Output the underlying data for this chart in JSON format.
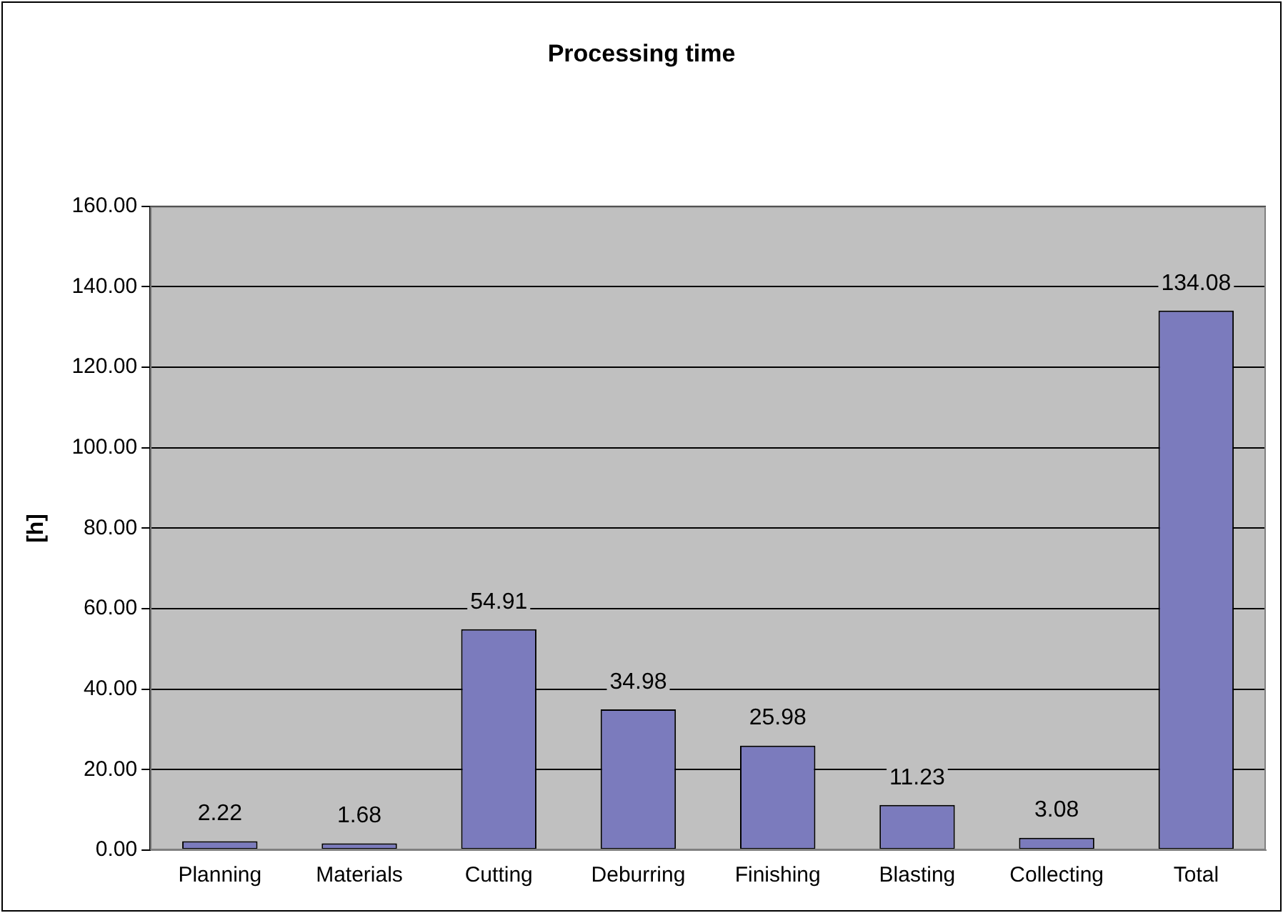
{
  "chart_data": {
    "type": "bar",
    "title": "Processing time",
    "ylabel": "[h]",
    "categories": [
      "Planning",
      "Materials",
      "Cutting",
      "Deburring",
      "Finishing",
      "Blasting",
      "Collecting",
      "Total"
    ],
    "values": [
      2.22,
      1.68,
      54.91,
      34.98,
      25.98,
      11.23,
      3.08,
      134.08
    ],
    "color": "#7b7bbd",
    "ylim": [
      0,
      160
    ],
    "yticks": [
      {
        "value": 0,
        "label": "0.00"
      },
      {
        "value": 20,
        "label": "20.00"
      },
      {
        "value": 40,
        "label": "40.00"
      },
      {
        "value": 60,
        "label": "60.00"
      },
      {
        "value": 80,
        "label": "80.00"
      },
      {
        "value": 100,
        "label": "100.00"
      },
      {
        "value": 120,
        "label": "120.00"
      },
      {
        "value": 140,
        "label": "140.00"
      },
      {
        "value": 160,
        "label": "160.00"
      }
    ],
    "grid": "y",
    "data_labels": true
  }
}
